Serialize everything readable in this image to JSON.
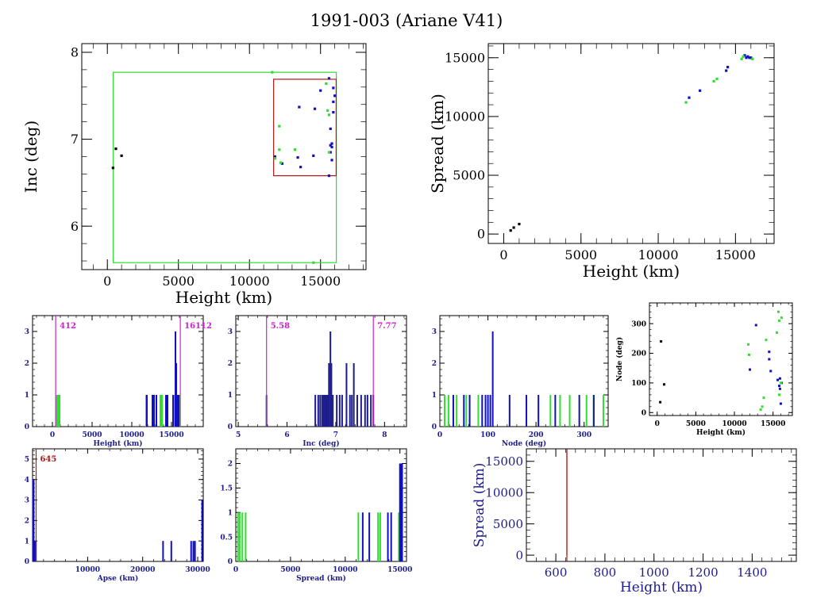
{
  "title": "1991-003 (Ariane V41)",
  "colors": {
    "blue": "#1010c0",
    "green": "#30dd30",
    "black": "#000000",
    "red": "#b01818",
    "magenta": "#cc22cc",
    "navy": "#1c1c8c"
  },
  "chart_data": [
    {
      "id": "inc_height",
      "type": "scatter",
      "xlabel": "Height (km)",
      "ylabel": "Inc (deg)",
      "xlim": [
        -1800,
        18200
      ],
      "ylim": [
        5.5,
        8.1
      ],
      "xticks": [
        0,
        5000,
        10000,
        15000
      ],
      "yticks": [
        6,
        7,
        8
      ],
      "boxes": [
        {
          "color": "green",
          "x": [
            412,
            16112
          ],
          "y": [
            5.58,
            7.77
          ]
        },
        {
          "color": "red",
          "x": [
            11700,
            16100
          ],
          "y": [
            6.58,
            7.69
          ]
        }
      ],
      "points": {
        "black": [
          [
            400,
            6.67
          ],
          [
            600,
            6.89
          ],
          [
            1000,
            6.81
          ]
        ],
        "blue": [
          [
            11800,
            6.8
          ],
          [
            12300,
            6.72
          ],
          [
            13400,
            6.79
          ],
          [
            13500,
            7.37
          ],
          [
            13600,
            6.68
          ],
          [
            14500,
            6.81
          ],
          [
            14600,
            7.35
          ],
          [
            15000,
            7.56
          ],
          [
            15600,
            7.7
          ],
          [
            15600,
            6.58
          ],
          [
            15700,
            7.12
          ],
          [
            15700,
            6.93
          ],
          [
            15800,
            6.91
          ],
          [
            15800,
            6.76
          ],
          [
            15900,
            7.31
          ],
          [
            15900,
            7.59
          ],
          [
            15900,
            7.43
          ],
          [
            16000,
            7.5
          ],
          [
            15700,
            6.85
          ],
          [
            15800,
            6.95
          ]
        ],
        "green": [
          [
            11600,
            7.77
          ],
          [
            11800,
            6.78
          ],
          [
            12100,
            7.15
          ],
          [
            12100,
            6.88
          ],
          [
            12200,
            6.73
          ],
          [
            13200,
            6.88
          ],
          [
            14500,
            5.58
          ],
          [
            15400,
            7.64
          ],
          [
            15500,
            7.33
          ],
          [
            15600,
            6.85
          ],
          [
            15600,
            7.28
          ]
        ]
      }
    },
    {
      "id": "spread_height",
      "type": "scatter",
      "xlabel": "Height (km)",
      "ylabel": "Spread (km)",
      "xlim": [
        -1000,
        17500
      ],
      "ylim": [
        -800,
        16200
      ],
      "xticks": [
        0,
        5000,
        10000,
        15000
      ],
      "yticks": [
        0,
        5000,
        10000,
        15000
      ],
      "points": {
        "black": [
          [
            450,
            300
          ],
          [
            650,
            550
          ],
          [
            1000,
            850
          ]
        ],
        "blue": [
          [
            12000,
            11600
          ],
          [
            12700,
            12200
          ],
          [
            14400,
            13900
          ],
          [
            14500,
            14200
          ],
          [
            15600,
            15200
          ],
          [
            15700,
            15000
          ],
          [
            15800,
            15100
          ],
          [
            15900,
            15000
          ],
          [
            16000,
            15000
          ]
        ],
        "green": [
          [
            11800,
            11200
          ],
          [
            13600,
            13000
          ],
          [
            13800,
            13200
          ],
          [
            15400,
            14900
          ],
          [
            15500,
            15100
          ],
          [
            16100,
            14900
          ]
        ]
      }
    },
    {
      "id": "hist_height",
      "type": "bar",
      "xlabel": "Height (km)",
      "xlim": [
        -2500,
        19000
      ],
      "ylim": [
        0,
        3.5
      ],
      "xticks": [
        0,
        5000,
        10000,
        15000
      ],
      "yticks": [
        0,
        1,
        2,
        3
      ],
      "vlines": [
        {
          "x": 412,
          "label": "412",
          "color": "magenta"
        },
        {
          "x": 16112,
          "label": "16112",
          "color": "magenta"
        }
      ],
      "bars": {
        "green": [
          [
            500,
            1
          ],
          [
            700,
            1
          ],
          [
            900,
            1
          ],
          [
            11800,
            1
          ],
          [
            13600,
            1
          ],
          [
            13800,
            1
          ],
          [
            15400,
            1
          ],
          [
            16000,
            1
          ]
        ],
        "blue": [
          [
            11900,
            1
          ],
          [
            12600,
            1
          ],
          [
            12800,
            1
          ],
          [
            13100,
            1
          ],
          [
            14300,
            1
          ],
          [
            14500,
            1
          ],
          [
            15200,
            1
          ],
          [
            15500,
            3
          ],
          [
            15600,
            2
          ],
          [
            15700,
            1
          ],
          [
            15900,
            1
          ]
        ]
      }
    },
    {
      "id": "hist_inc",
      "type": "bar",
      "xlabel": "Inc (deg)",
      "xlim": [
        4.95,
        8.45
      ],
      "ylim": [
        0,
        3.5
      ],
      "xticks": [
        5,
        6,
        7,
        8
      ],
      "yticks": [
        0,
        1,
        2,
        3
      ],
      "vlines": [
        {
          "x": 5.58,
          "label": "5.58",
          "color": "magenta"
        },
        {
          "x": 7.77,
          "label": "7.77",
          "color": "magenta"
        }
      ],
      "bars": {
        "navy": [
          [
            5.58,
            1
          ],
          [
            6.58,
            1
          ],
          [
            6.64,
            1
          ],
          [
            6.68,
            1
          ],
          [
            6.72,
            1
          ],
          [
            6.75,
            1
          ],
          [
            6.77,
            1
          ],
          [
            6.79,
            1
          ],
          [
            6.81,
            1
          ],
          [
            6.83,
            1
          ],
          [
            6.86,
            2
          ],
          [
            6.89,
            3
          ],
          [
            6.91,
            2
          ],
          [
            6.94,
            1
          ],
          [
            7.02,
            1
          ],
          [
            7.08,
            1
          ],
          [
            7.13,
            1
          ],
          [
            7.22,
            2
          ],
          [
            7.29,
            1
          ],
          [
            7.33,
            1
          ],
          [
            7.37,
            2
          ],
          [
            7.44,
            1
          ],
          [
            7.52,
            1
          ],
          [
            7.6,
            1
          ],
          [
            7.65,
            1
          ],
          [
            7.72,
            1
          ],
          [
            7.77,
            1
          ]
        ]
      }
    },
    {
      "id": "hist_node",
      "type": "bar",
      "xlabel": "Node (deg)",
      "xlim": [
        0,
        350
      ],
      "ylim": [
        0,
        3.5
      ],
      "xticks": [
        0,
        100,
        200,
        300
      ],
      "yticks": [
        0,
        1,
        2,
        3
      ],
      "bars": {
        "green": [
          [
            10,
            1
          ],
          [
            18,
            1
          ],
          [
            35,
            1
          ],
          [
            55,
            1
          ],
          [
            80,
            1
          ],
          [
            230,
            1
          ],
          [
            250,
            1
          ],
          [
            270,
            1
          ],
          [
            305,
            1
          ],
          [
            320,
            1
          ],
          [
            340,
            1
          ]
        ],
        "blue": [
          [
            28,
            1
          ],
          [
            50,
            1
          ],
          [
            62,
            1
          ],
          [
            88,
            1
          ],
          [
            95,
            1
          ],
          [
            100,
            1
          ],
          [
            105,
            1
          ],
          [
            110,
            3
          ],
          [
            145,
            1
          ],
          [
            180,
            1
          ],
          [
            205,
            1
          ],
          [
            240,
            1
          ],
          [
            290,
            1
          ],
          [
            320,
            1
          ]
        ]
      }
    },
    {
      "id": "node_height",
      "type": "scatter",
      "xlabel": "Height (km)",
      "ylabel": "Node (deg)",
      "xlim": [
        -1000,
        17500
      ],
      "ylim": [
        -10,
        370
      ],
      "xticks": [
        0,
        5000,
        10000,
        15000
      ],
      "yticks": [
        0,
        100,
        200,
        300
      ],
      "points": {
        "black": [
          [
            400,
            35
          ],
          [
            500,
            240
          ],
          [
            900,
            95
          ]
        ],
        "blue": [
          [
            12000,
            145
          ],
          [
            12800,
            295
          ],
          [
            14500,
            205
          ],
          [
            14500,
            180
          ],
          [
            14700,
            140
          ],
          [
            15600,
            110
          ],
          [
            15800,
            90
          ],
          [
            15900,
            80
          ],
          [
            15900,
            115
          ],
          [
            16000,
            30
          ],
          [
            16100,
            100
          ]
        ],
        "green": [
          [
            11800,
            230
          ],
          [
            11900,
            195
          ],
          [
            13400,
            10
          ],
          [
            13600,
            20
          ],
          [
            13800,
            50
          ],
          [
            14100,
            245
          ],
          [
            15500,
            270
          ],
          [
            15700,
            340
          ],
          [
            15800,
            310
          ],
          [
            15800,
            60
          ],
          [
            16000,
            100
          ],
          [
            16100,
            320
          ]
        ]
      }
    },
    {
      "id": "hist_apse",
      "type": "bar",
      "xlabel": "Apse (km)",
      "xlim": [
        0,
        31000
      ],
      "ylim": [
        0,
        5.5
      ],
      "xticks": [
        10000,
        20000,
        30000
      ],
      "yticks": [
        0,
        1,
        2,
        3,
        4,
        5
      ],
      "vlines": [
        {
          "x": 645,
          "label": "645",
          "color": "red"
        }
      ],
      "bars": {
        "blue": [
          [
            80,
            4
          ],
          [
            200,
            4
          ],
          [
            350,
            1
          ],
          [
            600,
            1
          ],
          [
            23700,
            1
          ],
          [
            25200,
            1
          ],
          [
            28800,
            1
          ],
          [
            29200,
            1
          ],
          [
            29500,
            1
          ],
          [
            30800,
            3
          ]
        ]
      }
    },
    {
      "id": "hist_spread",
      "type": "bar",
      "xlabel": "Spread (km)",
      "xlim": [
        0,
        15600
      ],
      "ylim": [
        0,
        2.3
      ],
      "xticks": [
        0,
        5000,
        10000,
        15000
      ],
      "yticks": [
        0,
        0.5,
        1,
        1.5,
        2
      ],
      "bars": {
        "green": [
          [
            200,
            1
          ],
          [
            350,
            1
          ],
          [
            600,
            1
          ],
          [
            900,
            1
          ],
          [
            11200,
            1
          ],
          [
            13000,
            1
          ],
          [
            13200,
            1
          ],
          [
            14900,
            1
          ]
        ],
        "blue": [
          [
            11600,
            1
          ],
          [
            12200,
            1
          ],
          [
            13900,
            1
          ],
          [
            14200,
            1
          ],
          [
            15000,
            2
          ],
          [
            15100,
            2
          ],
          [
            15200,
            2
          ]
        ]
      }
    },
    {
      "id": "spread_height_zoom",
      "type": "line",
      "xlabel": "Height (km)",
      "ylabel": "Spread (km)",
      "xlim": [
        480,
        1580
      ],
      "ylim": [
        -1000,
        17000
      ],
      "xticks": [
        600,
        800,
        1000,
        1200,
        1400
      ],
      "yticks": [
        0,
        5000,
        10000,
        15000
      ],
      "vlines": [
        {
          "x": 645,
          "label": "",
          "color": "red"
        }
      ]
    }
  ]
}
